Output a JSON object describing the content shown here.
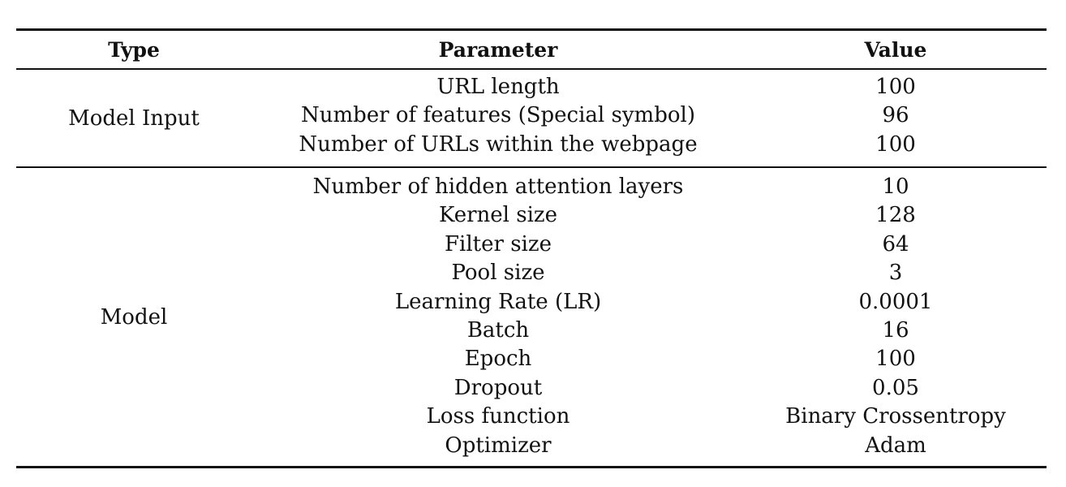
{
  "table": {
    "headers": {
      "type": "Type",
      "parameter": "Parameter",
      "value": "Value"
    },
    "groups": [
      {
        "type": "Model Input",
        "rows": [
          {
            "parameter": "URL length",
            "value": "100"
          },
          {
            "parameter": "Number of features (Special symbol)",
            "value": "96"
          },
          {
            "parameter": "Number of URLs within the webpage",
            "value": "100"
          }
        ]
      },
      {
        "type": "Model",
        "rows": [
          {
            "parameter": "Number of hidden attention layers",
            "value": "10"
          },
          {
            "parameter": "Kernel size",
            "value": "128"
          },
          {
            "parameter": "Filter size",
            "value": "64"
          },
          {
            "parameter": "Pool size",
            "value": "3"
          },
          {
            "parameter": "Learning Rate (LR)",
            "value": "0.0001"
          },
          {
            "parameter": "Batch",
            "value": "16"
          },
          {
            "parameter": "Epoch",
            "value": "100"
          },
          {
            "parameter": "Dropout",
            "value": "0.05"
          },
          {
            "parameter": "Loss function",
            "value": "Binary Crossentropy"
          },
          {
            "parameter": "Optimizer",
            "value": "Adam"
          }
        ]
      }
    ]
  }
}
